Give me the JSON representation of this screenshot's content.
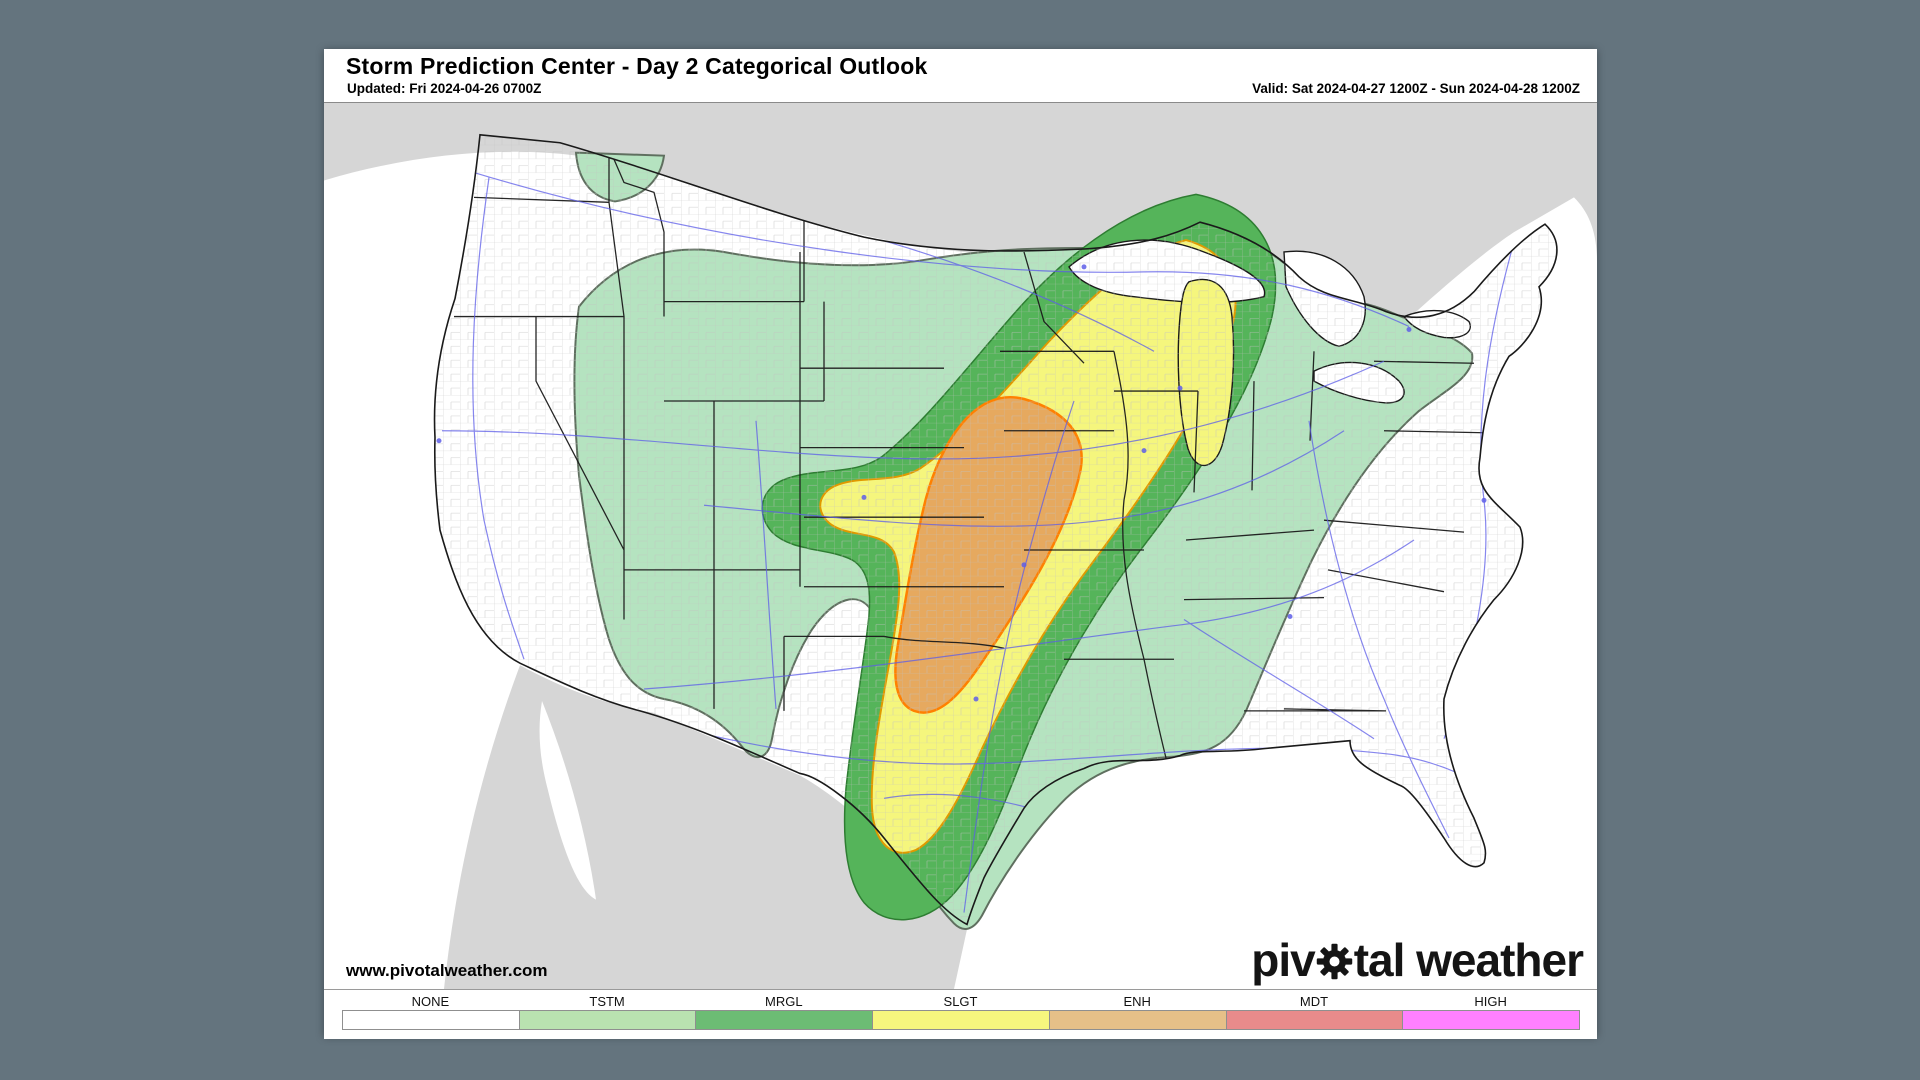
{
  "page": {
    "background_color": "#64747e",
    "panel_color": "#ffffff"
  },
  "header": {
    "title": "Storm Prediction Center - Day 2 Categorical Outlook",
    "updated": "Updated: Fri 2024-04-26 0700Z",
    "valid": "Valid: Sat 2024-04-27 1200Z - Sun 2024-04-28 1200Z"
  },
  "map": {
    "region": "Contiguous United States",
    "risk_levels_shown": [
      "TSTM",
      "MRGL",
      "SLGT",
      "ENH"
    ],
    "colors": {
      "foreign_land": "#d6d6d6",
      "us_land": "#ffffff",
      "water": "#ffffff",
      "county_line": "#c2c2c2",
      "state_line": "#1a1a1a",
      "road_line": "#5e5ee8",
      "coast_line": "#1a1a1a",
      "tstm_fill": "#b5e3c0",
      "tstm_stroke": "#5f6f5f",
      "mrgl_fill": "#55b45a",
      "mrgl_stroke": "#2e7d32",
      "slgt_fill": "#f5f67d",
      "slgt_stroke": "#e09900",
      "enh_fill": "#e6a95f",
      "enh_stroke": "#ff8000"
    }
  },
  "watermark": {
    "site_url": "www.pivotalweather.com",
    "logo_prefix": "piv",
    "logo_suffix": "tal weather"
  },
  "legend": {
    "items": [
      {
        "label": "NONE",
        "color": "#ffffff"
      },
      {
        "label": "TSTM",
        "color": "#b9e2b0"
      },
      {
        "label": "MRGL",
        "color": "#6cbc74"
      },
      {
        "label": "SLGT",
        "color": "#f6f67e"
      },
      {
        "label": "ENH",
        "color": "#e6c088"
      },
      {
        "label": "MDT",
        "color": "#e88b8b"
      },
      {
        "label": "HIGH",
        "color": "#ff80ff"
      }
    ]
  }
}
